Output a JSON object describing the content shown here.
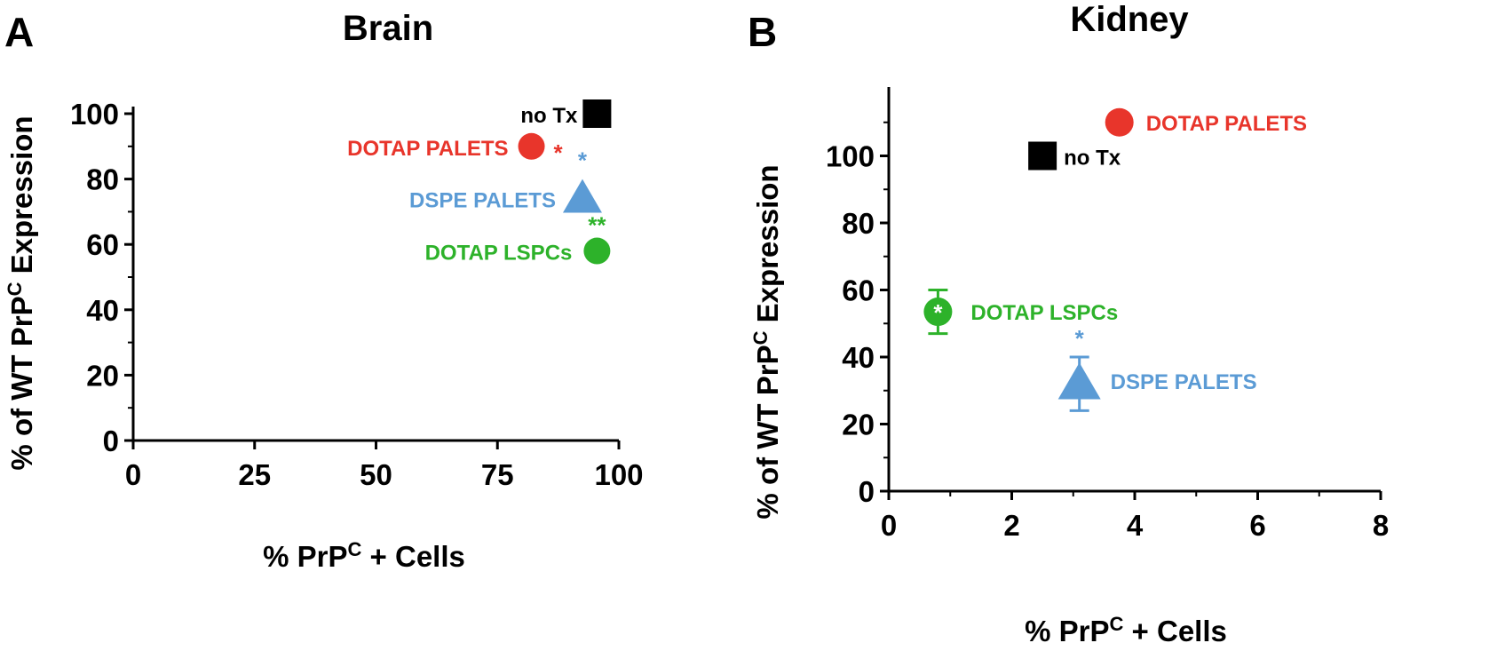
{
  "panels": [
    {
      "letter": "A",
      "title": "Brain",
      "xlabel_main": "% PrP",
      "xlabel_sup": "C",
      "xlabel_tail": " + Cells",
      "ylabel_main": "% of WT PrP",
      "ylabel_sup": "C",
      "ylabel_tail": " Expression"
    },
    {
      "letter": "B",
      "title": "Kidney",
      "xlabel_main": "% PrP",
      "xlabel_sup": "C",
      "xlabel_tail": " + Cells",
      "ylabel_main": "% of WT PrP",
      "ylabel_sup": "C",
      "ylabel_tail": " Expression"
    }
  ],
  "colors": {
    "no_tx": "#000000",
    "dotap_palets": "#e8352b",
    "dspe_palets": "#5b9bd5",
    "dotap_lspcs": "#2db22a"
  },
  "chart_data": [
    {
      "type": "scatter",
      "title": "Brain",
      "xlabel": "% PrPC + Cells",
      "ylabel": "% of WT PrPC Expression",
      "xlim": [
        0,
        100
      ],
      "ylim": [
        0,
        100
      ],
      "xticks": [
        0,
        25,
        50,
        75,
        100
      ],
      "yticks": [
        0,
        20,
        40,
        60,
        80,
        100
      ],
      "grid": false,
      "points": [
        {
          "name": "no Tx",
          "x": 95.5,
          "y": 100,
          "marker": "square",
          "color": "#000000",
          "sig": ""
        },
        {
          "name": "DOTAP PALETS",
          "x": 82,
          "y": 90,
          "marker": "circle",
          "color": "#e8352b",
          "sig": "*"
        },
        {
          "name": "DSPE PALETS",
          "x": 92.5,
          "y": 74,
          "marker": "triangle",
          "color": "#5b9bd5",
          "sig": "*"
        },
        {
          "name": "DOTAP LSPCs",
          "x": 95.5,
          "y": 58,
          "marker": "circle",
          "color": "#2db22a",
          "sig": "**"
        }
      ]
    },
    {
      "type": "scatter",
      "title": "Kidney",
      "xlabel": "% PrPC + Cells",
      "ylabel": "% of WT PrPC Expression",
      "xlim": [
        0,
        8
      ],
      "ylim": [
        0,
        120
      ],
      "xticks": [
        0,
        2,
        4,
        6,
        8
      ],
      "yticks": [
        0,
        20,
        40,
        60,
        80,
        100
      ],
      "grid": false,
      "points": [
        {
          "name": "DOTAP PALETS",
          "x": 3.75,
          "y": 110,
          "marker": "circle",
          "color": "#e8352b",
          "sig": ""
        },
        {
          "name": "no Tx",
          "x": 2.5,
          "y": 100,
          "marker": "square",
          "color": "#000000",
          "sig": ""
        },
        {
          "name": "DOTAP LSPCs",
          "x": 0.8,
          "y": 53.5,
          "marker": "circle",
          "color": "#2db22a",
          "sig": "*",
          "err": [
            47,
            60
          ]
        },
        {
          "name": "DSPE PALETS",
          "x": 3.1,
          "y": 32,
          "marker": "triangle",
          "color": "#5b9bd5",
          "sig": "*",
          "err": [
            24,
            40
          ]
        }
      ]
    }
  ]
}
